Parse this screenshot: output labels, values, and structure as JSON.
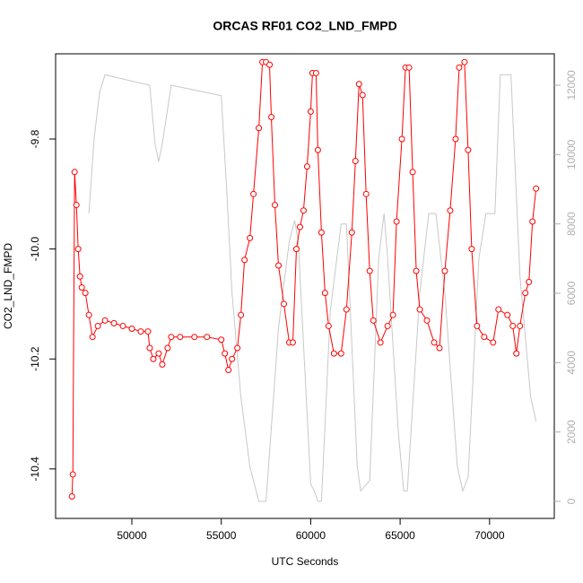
{
  "chart_data": {
    "type": "line",
    "title": "ORCAS RF01 CO2_LND_FMPD",
    "x_label": "UTC Seconds",
    "y_label": "CO2_LND_FMPD",
    "xlim": [
      45737,
      73620
    ],
    "xticks": [
      50000,
      55000,
      60000,
      65000,
      70000
    ],
    "ylim": [
      -10.49,
      -9.645
    ],
    "yticks": [
      -10.4,
      -10.2,
      {
        "value": -10.0,
        "label": "-10.0"
      },
      -9.8
    ],
    "y2lim": [
      -492,
      12905
    ],
    "y2ticks": [
      0,
      2000,
      4000,
      6000,
      8000,
      10000,
      12000
    ],
    "series": [
      {
        "color": "#ff0000",
        "markers": true,
        "x": [
          46650,
          46700,
          46800,
          46900,
          47000,
          47100,
          47200,
          47400,
          47600,
          47800,
          48100,
          48500,
          49000,
          49500,
          50000,
          50500,
          50900,
          51000,
          51200,
          51500,
          51700,
          52000,
          52200,
          52700,
          53500,
          54200,
          55000,
          55200,
          55400,
          55600,
          55900,
          56100,
          56300,
          56600,
          56800,
          57100,
          57300,
          57500,
          57700,
          57800,
          58000,
          58200,
          58500,
          58800,
          59000,
          59200,
          59400,
          59600,
          59800,
          60000,
          60100,
          60300,
          60400,
          60600,
          60800,
          61000,
          61300,
          61700,
          62000,
          62300,
          62500,
          62700,
          62900,
          63100,
          63300,
          63500,
          63900,
          64300,
          64600,
          64800,
          65100,
          65300,
          65500,
          65700,
          65900,
          66100,
          66500,
          66900,
          67200,
          67500,
          67800,
          68100,
          68300,
          68600,
          68800,
          69000,
          69300,
          69700,
          70200,
          70500,
          71000,
          71300,
          71500,
          71700,
          72000,
          72200,
          72400,
          72600
        ],
        "values": [
          -10.45,
          -10.41,
          -9.86,
          -9.92,
          -10.0,
          -10.05,
          -10.07,
          -10.08,
          -10.12,
          -10.16,
          -10.14,
          -10.13,
          -10.135,
          -10.14,
          -10.145,
          -10.15,
          -10.15,
          -10.18,
          -10.2,
          -10.19,
          -10.21,
          -10.18,
          -10.16,
          -10.16,
          -10.16,
          -10.16,
          -10.165,
          -10.19,
          -10.22,
          -10.2,
          -10.18,
          -10.12,
          -10.02,
          -9.98,
          -9.9,
          -9.78,
          -9.66,
          -9.66,
          -9.665,
          -9.76,
          -9.92,
          -10.03,
          -10.1,
          -10.17,
          -10.17,
          -10.0,
          -9.96,
          -9.93,
          -9.85,
          -9.75,
          -9.68,
          -9.68,
          -9.82,
          -9.97,
          -10.08,
          -10.14,
          -10.19,
          -10.19,
          -10.11,
          -9.97,
          -9.84,
          -9.7,
          -9.72,
          -9.9,
          -10.04,
          -10.13,
          -10.17,
          -10.14,
          -10.12,
          -9.95,
          -9.8,
          -9.67,
          -9.67,
          -9.86,
          -10.04,
          -10.11,
          -10.13,
          -10.17,
          -10.18,
          -10.04,
          -9.93,
          -9.8,
          -9.67,
          -9.66,
          -9.82,
          -10.0,
          -10.14,
          -10.16,
          -10.17,
          -10.11,
          -10.12,
          -10.14,
          -10.19,
          -10.14,
          -10.08,
          -10.06,
          -9.95,
          -9.89
        ]
      },
      {
        "color": "#c8c8c8",
        "axis": "y2",
        "markers": false,
        "x": [
          47600,
          47900,
          48200,
          48500,
          51000,
          51300,
          51500,
          51700,
          52200,
          55000,
          55300,
          55600,
          56100,
          56600,
          57100,
          57500,
          58200,
          58800,
          59100,
          59300,
          60000,
          60200,
          60400,
          60600,
          61100,
          61700,
          62000,
          62600,
          62800,
          63300,
          63800,
          64100,
          64300,
          64900,
          65200,
          65400,
          66100,
          66600,
          67000,
          67500,
          68200,
          68500,
          68800,
          69400,
          69800,
          70300,
          70500,
          70600,
          71200,
          71700,
          72300,
          72600
        ],
        "values": [
          8300,
          10500,
          11800,
          12300,
          12000,
          10300,
          9800,
          10300,
          12000,
          11700,
          9000,
          6000,
          3000,
          1000,
          0,
          0,
          5000,
          7500,
          8100,
          7500,
          500,
          300,
          0,
          0,
          5500,
          8000,
          8000,
          1000,
          300,
          600,
          7000,
          8300,
          7000,
          2000,
          300,
          300,
          6000,
          8300,
          8300,
          6000,
          1000,
          300,
          700,
          7000,
          8300,
          8300,
          11000,
          12300,
          12300,
          6500,
          3000,
          2300
        ]
      }
    ]
  }
}
